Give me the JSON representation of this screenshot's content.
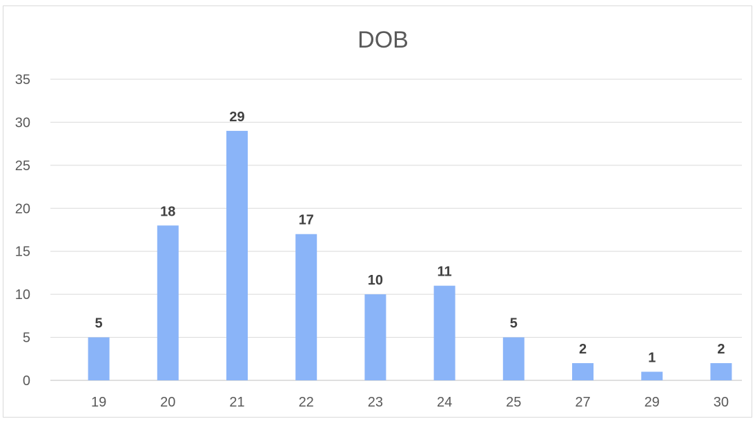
{
  "chart_data": {
    "type": "bar",
    "title": "DOB",
    "xlabel": "",
    "ylabel": "",
    "categories": [
      "19",
      "20",
      "21",
      "22",
      "23",
      "24",
      "25",
      "27",
      "29",
      "30"
    ],
    "values": [
      5,
      18,
      29,
      17,
      10,
      11,
      5,
      2,
      1,
      2
    ],
    "ylim": [
      0,
      35
    ],
    "yticks": [
      0,
      5,
      10,
      15,
      20,
      25,
      30,
      35
    ],
    "grid": true,
    "legend": "none",
    "data_labels": true,
    "bar_color": "#8AB4F8"
  }
}
